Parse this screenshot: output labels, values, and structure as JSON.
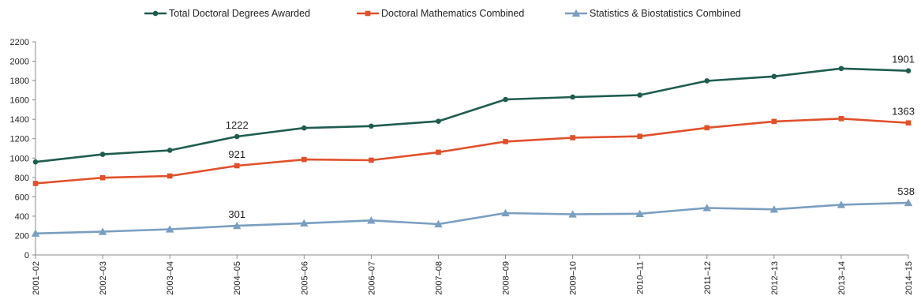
{
  "chart_data": {
    "type": "line",
    "title": "",
    "xlabel": "",
    "ylabel": "",
    "ylim": [
      0,
      2200
    ],
    "ytick_step": 200,
    "grid": false,
    "legend_position": "top",
    "categories": [
      "2001–02",
      "2002–03",
      "2003–04",
      "2004–05",
      "2005–06",
      "2006–07",
      "2007–08",
      "2008–09",
      "2009–10",
      "2010–11",
      "2011–12",
      "2012–13",
      "2013–14",
      "2014–15"
    ],
    "series": [
      {
        "name": "Total Doctoral Degrees Awarded",
        "color": "#1f5c50",
        "marker": "circle",
        "values": [
          960,
          1038,
          1080,
          1222,
          1310,
          1330,
          1380,
          1605,
          1630,
          1650,
          1797,
          1843,
          1925,
          1901
        ],
        "labels": [
          {
            "index": 3,
            "text": "1222"
          },
          {
            "index": 13,
            "text": "1901"
          }
        ]
      },
      {
        "name": "Doctoral Mathematics Combined",
        "color": "#e0502a",
        "marker": "square",
        "values": [
          738,
          797,
          815,
          921,
          985,
          978,
          1060,
          1170,
          1210,
          1225,
          1313,
          1378,
          1407,
          1363
        ],
        "labels": [
          {
            "index": 3,
            "text": "921"
          },
          {
            "index": 13,
            "text": "1363"
          }
        ]
      },
      {
        "name": "Statistics & Biostatistics Combined",
        "color": "#7a9ec1",
        "marker": "triangle",
        "values": [
          222,
          240,
          265,
          301,
          327,
          356,
          318,
          432,
          420,
          425,
          485,
          470,
          518,
          538
        ],
        "labels": [
          {
            "index": 3,
            "text": "301"
          },
          {
            "index": 13,
            "text": "538"
          }
        ]
      }
    ]
  }
}
